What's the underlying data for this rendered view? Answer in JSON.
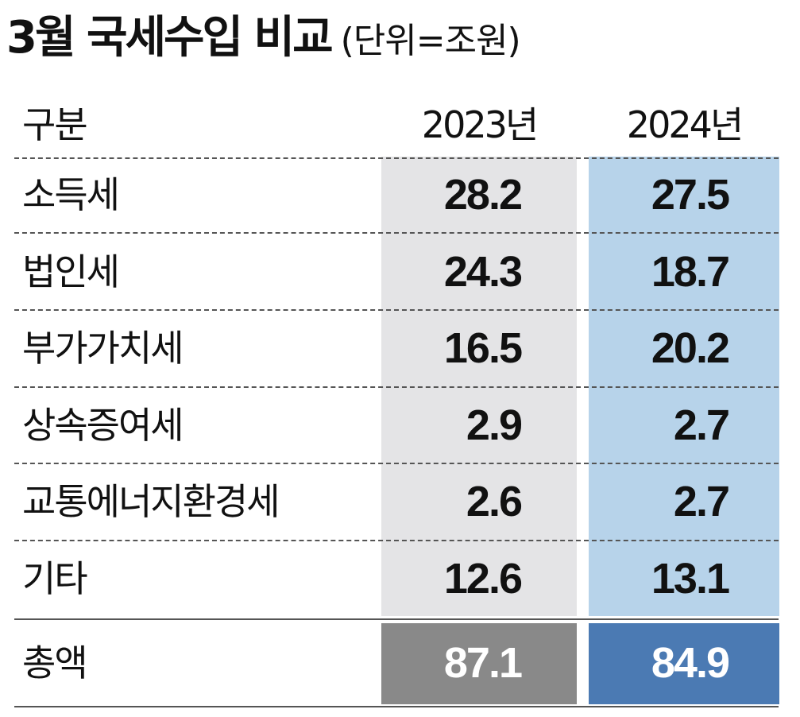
{
  "title": "3월 국세수입 비교",
  "unit_note": "(단위=조원)",
  "chart_data": {
    "type": "table",
    "title": "3월 국세수입 비교",
    "unit": "(단위=조원)",
    "columns": [
      "구분",
      "2023년",
      "2024년"
    ],
    "rows": [
      {
        "category": "소득세",
        "y2023": "28.2",
        "y2024": "27.5"
      },
      {
        "category": "법인세",
        "y2023": "24.3",
        "y2024": "18.7"
      },
      {
        "category": "부가가치세",
        "y2023": "16.5",
        "y2024": "20.2"
      },
      {
        "category": "상속증여세",
        "y2023": "2.9",
        "y2024": "2.7"
      },
      {
        "category": "교통에너지환경세",
        "y2023": "2.6",
        "y2024": "2.7"
      },
      {
        "category": "기타",
        "y2023": "12.6",
        "y2024": "13.1"
      }
    ],
    "total": {
      "category": "총액",
      "y2023": "87.1",
      "y2024": "84.9"
    }
  },
  "colors": {
    "col_2023_bg": "#e4e4e6",
    "col_2024_bg": "#b7d3ea",
    "total_2023_bg": "#898989",
    "total_2024_bg": "#4b7ab3"
  }
}
